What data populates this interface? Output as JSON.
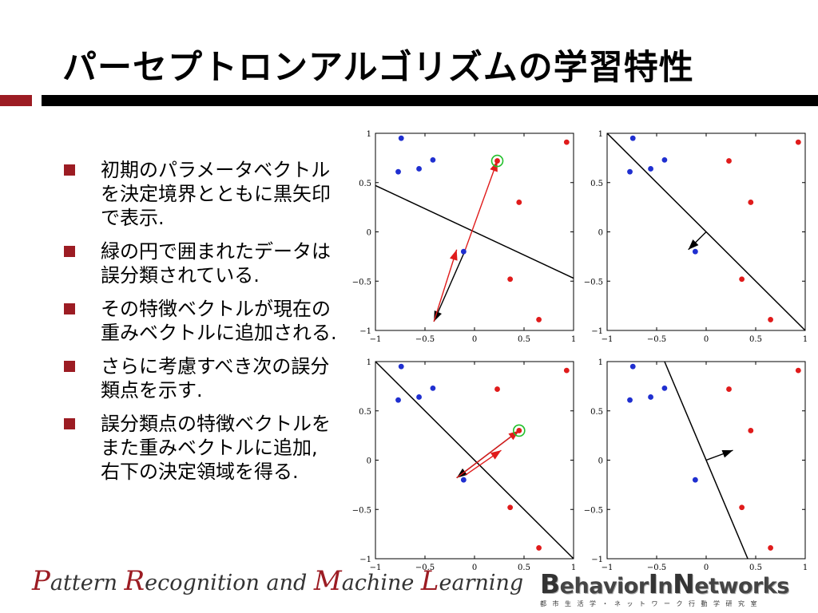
{
  "slide": {
    "title": "パーセプトロンアルゴリズムの学習特性",
    "bullets": [
      "初期のパラメータベクトルを決定境界とともに黒矢印で表示.",
      "緑の円で囲まれたデータは誤分類されている.",
      "その特徴ベクトルが現在の重みベクトルに追加される.",
      "さらに考慮すべき次の誤分類点を示す.",
      "誤分類点の特徴ベクトルをまた重みベクトルに追加, 右下の決定領域を得る."
    ],
    "colors": {
      "accent": "#9c1c23",
      "class_red": "#e01b1b",
      "class_blue": "#1f2fd0",
      "highlight": "#22c02b"
    }
  },
  "footer": {
    "left_caps": [
      "P",
      "R",
      "M",
      "L"
    ],
    "left_parts": [
      "attern ",
      "ecognition and ",
      "achine ",
      "earning"
    ],
    "logo": {
      "b": "B",
      "ehavior": "ehavior",
      "i": "I",
      "n_small": "n",
      "n": "N",
      "etworks": "etworks"
    },
    "logo_sub": "都市生活学・ネットワーク行動学研究室"
  },
  "chart_data": [
    {
      "type": "scatter",
      "xlim": [
        -1,
        1
      ],
      "ylim": [
        -1,
        1
      ],
      "xticks": [
        "−1",
        "−0.5",
        "0",
        "0.5",
        "1"
      ],
      "yticks": [
        "1",
        "0.5",
        "0",
        "−0.5",
        "−1"
      ],
      "series": [
        {
          "color": "blue",
          "x": [
            -0.77,
            -0.74,
            -0.56,
            -0.42,
            -0.11
          ],
          "y": [
            0.61,
            0.95,
            0.64,
            0.73,
            -0.2
          ]
        },
        {
          "color": "red",
          "x": [
            0.93,
            0.23,
            0.45,
            0.36,
            0.65
          ],
          "y": [
            0.91,
            0.72,
            0.3,
            -0.48,
            -0.89
          ]
        }
      ],
      "boundary": [
        [
          -1,
          0.47
        ],
        [
          1,
          -0.47
        ]
      ],
      "highlight": {
        "x": 0.23,
        "y": 0.72
      },
      "arrows": [
        {
          "color": "black",
          "from": [
            -0.1,
            -0.2
          ],
          "to": [
            -0.41,
            -0.91
          ]
        },
        {
          "color": "red",
          "from": [
            -0.1,
            -0.2
          ],
          "to": [
            0.23,
            0.72
          ]
        },
        {
          "color": "red",
          "from": [
            -0.41,
            -0.91
          ],
          "to": [
            -0.18,
            -0.18
          ]
        }
      ]
    },
    {
      "type": "scatter",
      "xlim": [
        -1,
        1
      ],
      "ylim": [
        -1,
        1
      ],
      "xticks": [
        "−1",
        "−0.5",
        "0",
        "0.5",
        "1"
      ],
      "yticks": [
        "1",
        "0.5",
        "0",
        "−0.5",
        "−1"
      ],
      "series": [
        {
          "color": "blue",
          "x": [
            -0.77,
            -0.74,
            -0.56,
            -0.42,
            -0.11
          ],
          "y": [
            0.61,
            0.95,
            0.64,
            0.73,
            -0.2
          ]
        },
        {
          "color": "red",
          "x": [
            0.93,
            0.23,
            0.45,
            0.36,
            0.65
          ],
          "y": [
            0.91,
            0.72,
            0.3,
            -0.48,
            -0.89
          ]
        }
      ],
      "boundary": [
        [
          -1,
          1
        ],
        [
          1,
          -1
        ]
      ],
      "arrows": [
        {
          "color": "black",
          "from": [
            0,
            0
          ],
          "to": [
            -0.18,
            -0.18
          ]
        }
      ]
    },
    {
      "type": "scatter",
      "xlim": [
        -1,
        1
      ],
      "ylim": [
        -1,
        1
      ],
      "xticks": [
        "−1",
        "−0.5",
        "0",
        "0.5",
        "1"
      ],
      "yticks": [
        "1",
        "0.5",
        "0",
        "−0.5",
        "−1"
      ],
      "series": [
        {
          "color": "blue",
          "x": [
            -0.77,
            -0.74,
            -0.56,
            -0.42,
            -0.11
          ],
          "y": [
            0.61,
            0.95,
            0.64,
            0.73,
            -0.2
          ]
        },
        {
          "color": "red",
          "x": [
            0.93,
            0.23,
            0.45,
            0.36,
            0.65
          ],
          "y": [
            0.91,
            0.72,
            0.3,
            -0.48,
            -0.89
          ]
        }
      ],
      "boundary": [
        [
          -1,
          1
        ],
        [
          1,
          -1
        ]
      ],
      "highlight": {
        "x": 0.45,
        "y": 0.3
      },
      "arrows": [
        {
          "color": "black",
          "from": [
            0.45,
            0.3
          ],
          "to": [
            -0.18,
            -0.18
          ]
        },
        {
          "color": "red",
          "from": [
            -0.18,
            -0.18
          ],
          "to": [
            0.45,
            0.3
          ]
        },
        {
          "color": "red",
          "from": [
            -0.09,
            -0.15
          ],
          "to": [
            0.27,
            0.1
          ]
        }
      ]
    },
    {
      "type": "scatter",
      "xlim": [
        -1,
        1
      ],
      "ylim": [
        -1,
        1
      ],
      "xticks": [
        "−1",
        "−0.5",
        "0",
        "0.5",
        "1"
      ],
      "yticks": [
        "1",
        "0.5",
        "0",
        "−0.5",
        "−1"
      ],
      "series": [
        {
          "color": "blue",
          "x": [
            -0.77,
            -0.74,
            -0.56,
            -0.42,
            -0.11
          ],
          "y": [
            0.61,
            0.95,
            0.64,
            0.73,
            -0.2
          ]
        },
        {
          "color": "red",
          "x": [
            0.93,
            0.23,
            0.45,
            0.36,
            0.65
          ],
          "y": [
            0.91,
            0.72,
            0.3,
            -0.48,
            -0.89
          ]
        }
      ],
      "boundary": [
        [
          -0.42,
          1
        ],
        [
          0.42,
          -1
        ]
      ],
      "arrows": [
        {
          "color": "black",
          "from": [
            0,
            0
          ],
          "to": [
            0.27,
            0.1
          ]
        }
      ]
    }
  ]
}
